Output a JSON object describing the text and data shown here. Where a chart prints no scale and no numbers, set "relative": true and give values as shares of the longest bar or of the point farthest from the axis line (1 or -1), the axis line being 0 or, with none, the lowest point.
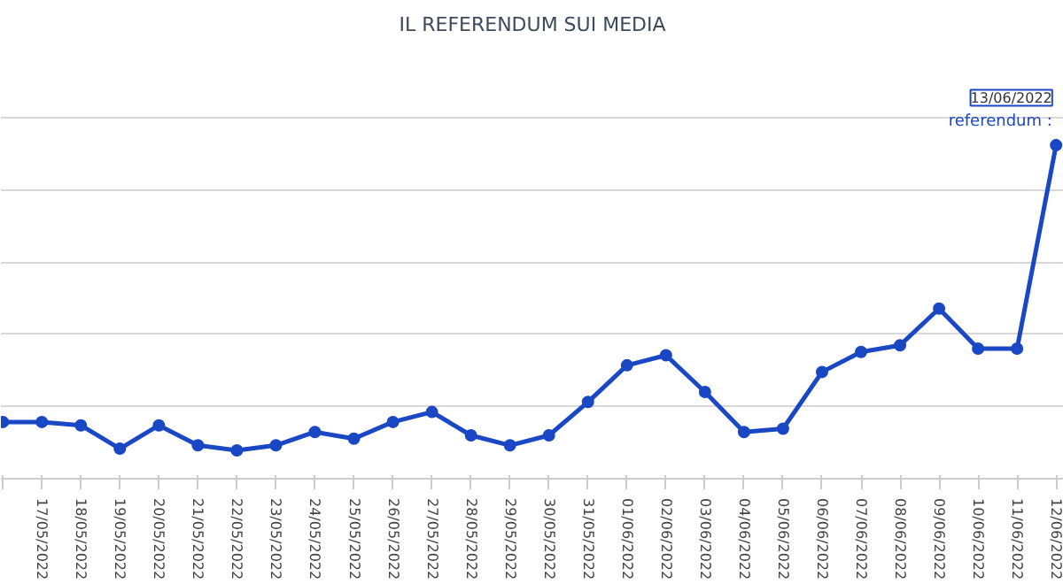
{
  "chart_data": {
    "type": "line",
    "title": "IL REFERENDUM SUI MEDIA",
    "categories": [
      null,
      "17/05/2022",
      "18/05/2022",
      "19/05/2022",
      "20/05/2022",
      "21/05/2022",
      "22/05/2022",
      "23/05/2022",
      "24/05/2022",
      "25/05/2022",
      "26/05/2022",
      "27/05/2022",
      "28/05/2022",
      "29/05/2022",
      "30/05/2022",
      "31/05/2022",
      "01/06/2022",
      "02/06/2022",
      "03/06/2022",
      "04/06/2022",
      "05/06/2022",
      "06/06/2022",
      "07/06/2022",
      "08/06/2022",
      "09/06/2022",
      "10/06/2022",
      "11/06/2022",
      "12/06/2022"
    ],
    "series": [
      {
        "color": "#1a47c4",
        "values": [
          0.17,
          0.17,
          0.16,
          0.09,
          0.16,
          0.1,
          0.085,
          0.1,
          0.14,
          0.12,
          0.17,
          0.2,
          0.13,
          0.1,
          0.13,
          0.23,
          0.34,
          0.37,
          0.26,
          0.14,
          0.15,
          0.32,
          0.38,
          0.4,
          0.51,
          0.39,
          0.39,
          1
        ]
      }
    ],
    "relative": true,
    "grid": "y",
    "marker": "circle",
    "line_style": "solid",
    "annotations": [
      "13/06/2022",
      "referendum :"
    ]
  }
}
